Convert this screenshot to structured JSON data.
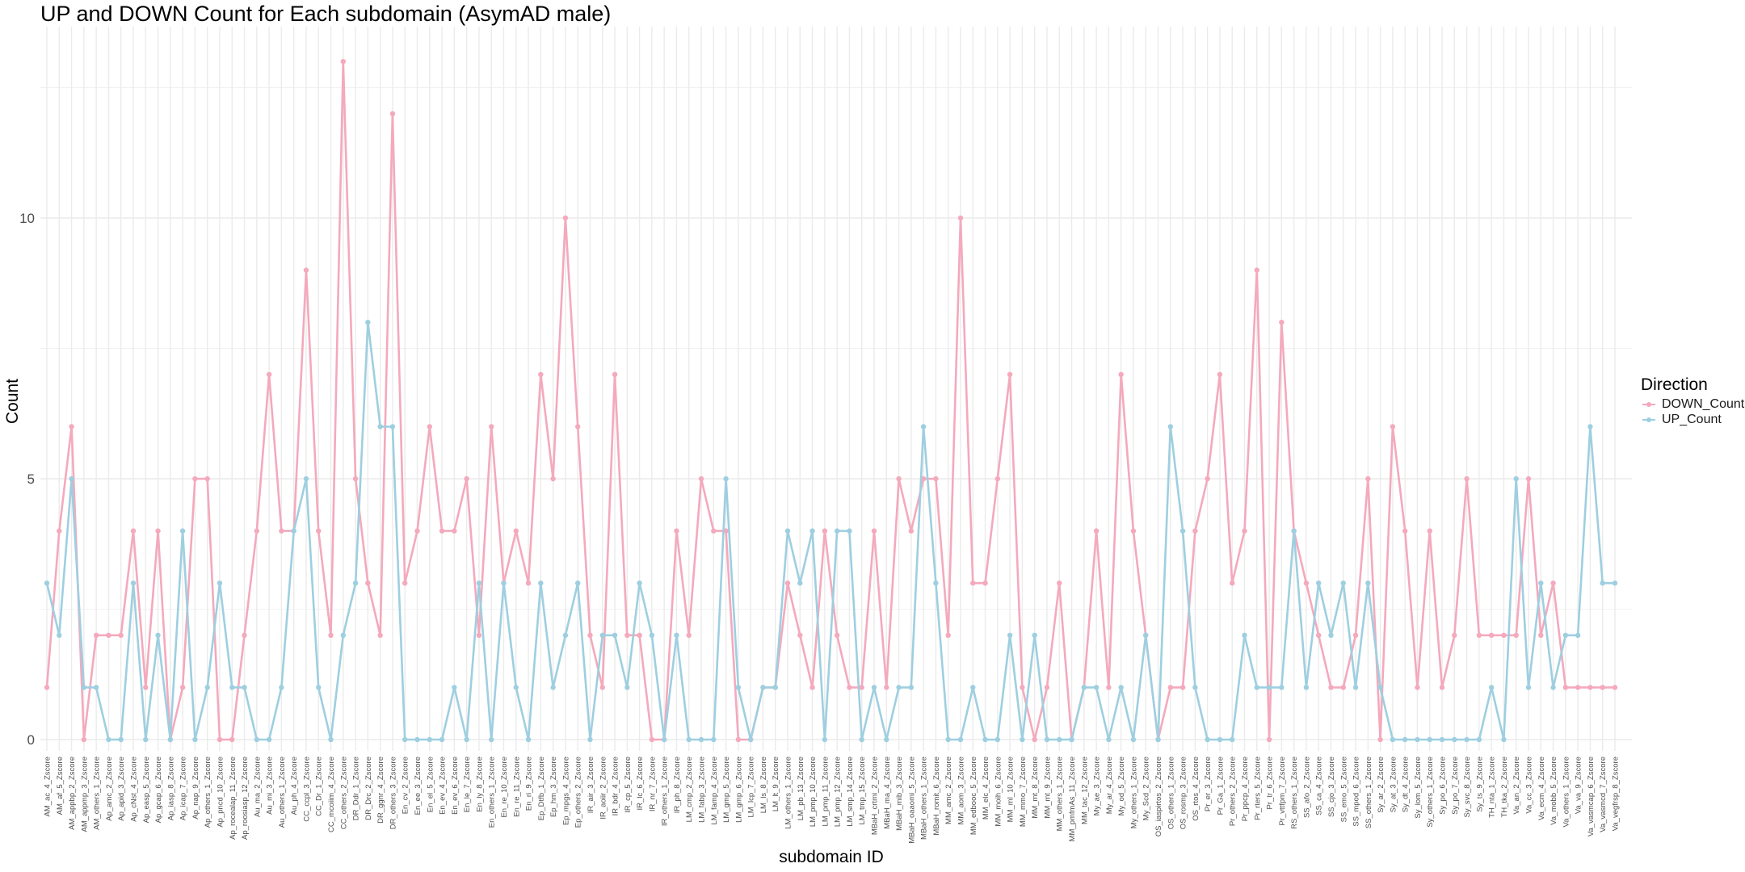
{
  "chart_data": {
    "type": "line",
    "title": "UP and DOWN Count for Each subdomain (AsymAD male)",
    "xlabel": "subdomain ID",
    "ylabel": "Count",
    "ylim": [
      0,
      13.8
    ],
    "yticks": [
      0,
      5,
      10
    ],
    "grid": true,
    "legend": {
      "title": "Direction",
      "position": "right",
      "entries": [
        "DOWN_Count",
        "UP_Count"
      ]
    },
    "colors": {
      "DOWN_Count": "#f4a9bd",
      "UP_Count": "#9ecfe0"
    },
    "categories": [
      "AM_ac_4_Zscore",
      "AM_af_5_Zscore",
      "AM_appbp_2_Zscore",
      "AM_appmp_3_Zscore",
      "AM_others_1_Zscore",
      "Ap_amc_2_Zscore",
      "Ap_apid_3_Zscore",
      "Ap_cNst_4_Zscore",
      "Ap_easp_5_Zscore",
      "Ap_gcap_6_Zscore",
      "Ap_iasp_8_Zscore",
      "Ap_icap_7_Zscore",
      "Ap_nap_9_Zscore",
      "Ap_others_1_Zscore",
      "Ap_pncd_10_Zscore",
      "Ap_rocealap_11_Zscore",
      "Ap_roosiasp_12_Zscore",
      "Au_ma_2_Zscore",
      "Au_mi_3_Zscore",
      "Au_others_1_Zscore",
      "Au_ph_4_Zscore",
      "CC_ccpl_3_Zscore",
      "CC_Dr_1_Zscore",
      "CC_mcoiim_4_Zscore",
      "CC_others_2_Zscore",
      "DR_Ddr_1_Zscore",
      "DR_Drc_2_Zscore",
      "DR_ggnr_4_Zscore",
      "DR_others_3_Zscore",
      "En_cv_2_Zscore",
      "En_ee_3_Zscore",
      "En_el_5_Zscore",
      "En_ev_4_Zscore",
      "En_ev_6_Zscore",
      "En_le_7_Zscore",
      "En_ly_8_Zscore",
      "En_others_1_Zscore",
      "En_re_10_Zscore",
      "En_re_11_Zscore",
      "En_ri_9_Zscore",
      "Ep_Dtfb_1_Zscore",
      "Ep_hm_3_Zscore",
      "Ep_mpgs_4_Zscore",
      "Ep_others_2_Zscore",
      "IR_air_3_Zscore",
      "IR_aoiir_2_Zscore",
      "IR_bdr_4_Zscore",
      "IR_cp_5_Zscore",
      "IR_lc_6_Zscore",
      "IR_nr_7_Zscore",
      "IR_others_1_Zscore",
      "IR_ph_8_Zscore",
      "LM_cmp_2_Zscore",
      "LM_fabp_3_Zscore",
      "LM_famp_4_Zscore",
      "LM_gmp_5_Zscore",
      "LM_gmp_6_Zscore",
      "LM_lcp_7_Zscore",
      "LM_ls_8_Zscore",
      "LM_lt_9_Zscore",
      "LM_others_1_Zscore",
      "LM_pb_13_Zscore",
      "LM_pmp_10_Zscore",
      "LM_pmp_11_Zscore",
      "LM_pmp_12_Zscore",
      "LM_smp_14_Zscore",
      "LM_tmp_15_Zscore",
      "MBaH_crtmi_2_Zscore",
      "MBaH_ma_4_Zscore",
      "MBaH_mib_3_Zscore",
      "MBaH_oaaomi_5_Zscore",
      "MBaH_others_1_Zscore",
      "MBaH_romit_6_Zscore",
      "MM_amc_2_Zscore",
      "MM_aom_3_Zscore",
      "MM_edbooc_5_Zscore",
      "MM_elc_4_Zscore",
      "MM_moih_6_Zscore",
      "MM_ml_10_Zscore",
      "MM_mmo_7_Zscore",
      "MM_mt_8_Zscore",
      "MM_mt_9_Zscore",
      "MM_others_1_Zscore",
      "MM_pmfmAs_11_Zscore",
      "MM_tac_12_Zscore",
      "My_ae_3_Zscore",
      "My_ar_4_Zscore",
      "My_od_5_Zscore",
      "My_others_1_Zscore",
      "My_Scd_2_Zscore",
      "OS_iaspirtos_2_Zscore",
      "OS_others_1_Zscore",
      "OS_rosmp_3_Zscore",
      "OS_rtos_4_Zscore",
      "Pr_er_3_Zscore",
      "Pr_Ga_1_Zscore",
      "Pr_others_2_Zscore",
      "Pr_ppcp_4_Zscore",
      "Pr_rters_5_Zscore",
      "Pr_tr_6_Zscore",
      "Pr_vttfpm_7_Zscore",
      "RS_others_1_Zscore",
      "SS_afo_2_Zscore",
      "SS_ca_4_Zscore",
      "SS_cjo_3_Zscore",
      "SS_emo_5_Zscore",
      "SS_mpod_6_Zscore",
      "SS_others_1_Zscore",
      "Sy_ar_2_Zscore",
      "Sy_at_3_Zscore",
      "Sy_dt_4_Zscore",
      "Sy_lom_5_Zscore",
      "Sy_others_1_Zscore",
      "Sy_po_6_Zscore",
      "Sy_po_7_Zscore",
      "Sy_svc_8_Zscore",
      "Sy_ts_9_Zscore",
      "TH_nta_1_Zscore",
      "TH_tka_2_Zscore",
      "Va_an_2_Zscore",
      "Va_cc_3_Zscore",
      "Va_ecm_4_Zscore",
      "Va_mobb_5_Zscore",
      "Va_others_1_Zscore",
      "Va_va_9_Zscore",
      "Va_vasmcap_6_Zscore",
      "Va_vasmcd_7_Zscore",
      "Va_vegfrsp_8_Zscore"
    ],
    "series": [
      {
        "name": "DOWN_Count",
        "values": [
          1,
          4,
          6,
          0,
          2,
          2,
          2,
          4,
          1,
          4,
          0,
          1,
          5,
          5,
          0,
          0,
          2,
          4,
          7,
          4,
          4,
          9,
          4,
          2,
          13,
          5,
          3,
          2,
          12,
          3,
          4,
          6,
          4,
          4,
          5,
          2,
          6,
          3,
          4,
          3,
          7,
          5,
          10,
          6,
          2,
          1,
          7,
          2,
          2,
          0,
          0,
          4,
          2,
          5,
          4,
          4,
          0,
          0,
          1,
          1,
          3,
          2,
          1,
          4,
          2,
          1,
          1,
          4,
          1,
          5,
          4,
          5,
          5,
          2,
          10,
          3,
          3,
          5,
          7,
          1,
          0,
          1,
          3,
          0,
          1,
          4,
          1,
          7,
          4,
          2,
          0,
          1,
          1,
          4,
          5,
          7,
          3,
          4,
          9,
          0,
          8,
          4,
          3,
          2,
          1,
          1,
          2,
          5,
          0,
          6,
          4,
          1,
          4,
          1,
          2,
          5,
          2,
          2,
          2,
          2,
          5,
          2,
          3,
          1,
          1,
          1,
          1,
          1
        ]
      },
      {
        "name": "UP_Count",
        "values": [
          3,
          2,
          5,
          1,
          1,
          0,
          0,
          3,
          0,
          2,
          0,
          4,
          0,
          1,
          3,
          1,
          1,
          0,
          0,
          1,
          4,
          5,
          1,
          0,
          2,
          3,
          8,
          6,
          6,
          0,
          0,
          0,
          0,
          1,
          0,
          3,
          0,
          3,
          1,
          0,
          3,
          1,
          2,
          3,
          0,
          2,
          2,
          1,
          3,
          2,
          0,
          2,
          0,
          0,
          0,
          5,
          1,
          0,
          1,
          1,
          4,
          3,
          4,
          0,
          4,
          4,
          0,
          1,
          0,
          1,
          1,
          6,
          3,
          0,
          0,
          1,
          0,
          0,
          2,
          0,
          2,
          0,
          0,
          0,
          1,
          1,
          0,
          1,
          0,
          2,
          0,
          6,
          4,
          1,
          0,
          0,
          0,
          2,
          1,
          1,
          1,
          4,
          1,
          3,
          2,
          3,
          1,
          3,
          1,
          0,
          0,
          0,
          0,
          0,
          0,
          0,
          0,
          1,
          0,
          5,
          1,
          3,
          1,
          2,
          2,
          6,
          3,
          3
        ]
      }
    ]
  }
}
